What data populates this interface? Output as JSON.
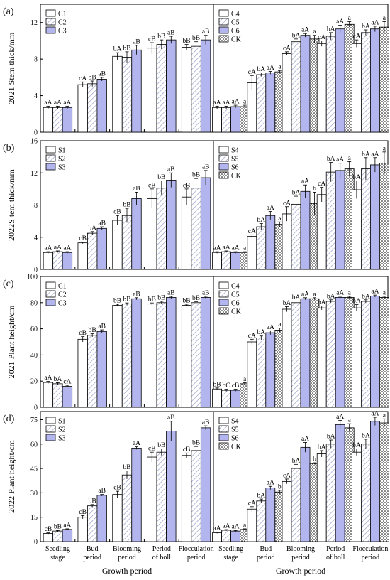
{
  "colors": {
    "white": "#ffffff",
    "hatch": "#9aa0c8",
    "blue": "#b3b6ee",
    "dots": "#000000",
    "frame": "#000000"
  },
  "x_title": "Growth period",
  "stage_labels": [
    [
      "Seedling",
      "stage"
    ],
    [
      "Bud",
      "period"
    ],
    [
      "Blooming",
      "period"
    ],
    [
      "Period",
      "of boll"
    ],
    [
      "Flocculation",
      "period"
    ]
  ],
  "chart_data": [
    {
      "type": "bar",
      "panel": "(a)",
      "ylabel": "2021 Stem thick/mm",
      "ylim": [
        0,
        14
      ],
      "yticks": [
        0,
        4,
        8,
        12
      ],
      "categories": [
        "Seedling stage",
        "Bud period",
        "Blooming period",
        "Period of boll",
        "Flocculation period"
      ],
      "left": {
        "series": [
          {
            "name": "C1",
            "pattern": "white",
            "values": [
              2.7,
              5.2,
              8.3,
              9.2,
              9.3
            ],
            "errors": [
              0.15,
              0.3,
              0.4,
              0.6,
              0.3
            ]
          },
          {
            "name": "C2",
            "pattern": "hatch",
            "values": [
              2.7,
              5.3,
              8.2,
              9.6,
              9.4
            ],
            "errors": [
              0.15,
              0.3,
              0.6,
              0.5,
              0.5
            ]
          },
          {
            "name": "C3",
            "pattern": "blue",
            "values": [
              2.7,
              5.8,
              9.0,
              10.1,
              10.1
            ],
            "errors": [
              0.15,
              0.2,
              0.5,
              0.4,
              0.5
            ]
          }
        ],
        "labels": [
          [
            "aA",
            "aA",
            "aA"
          ],
          [
            "cA",
            "bB",
            "aB"
          ],
          [
            "bA",
            "bB",
            "aB"
          ],
          [
            "cB",
            "bB",
            "aB"
          ],
          [
            "bB",
            "bB",
            "aB"
          ]
        ]
      },
      "right": {
        "series": [
          {
            "name": "C4",
            "pattern": "white",
            "values": [
              2.7,
              5.4,
              8.6,
              9.7,
              9.7
            ],
            "errors": [
              0.15,
              0.8,
              0.2,
              0.3,
              0.4
            ]
          },
          {
            "name": "C5",
            "pattern": "hatch",
            "values": [
              2.7,
              6.3,
              9.9,
              10.5,
              10.9
            ],
            "errors": [
              0.15,
              0.2,
              0.3,
              0.4,
              0.3
            ]
          },
          {
            "name": "C6",
            "pattern": "blue",
            "values": [
              2.8,
              6.5,
              10.6,
              11.3,
              11.3
            ],
            "errors": [
              0.15,
              0.15,
              0.2,
              0.4,
              0.3
            ]
          },
          {
            "name": "CK",
            "pattern": "dots",
            "values": [
              2.8,
              6.6,
              10.2,
              11.8,
              11.5
            ],
            "errors": [
              0.15,
              0.15,
              0.4,
              0.3,
              0.6
            ]
          }
        ],
        "labels": [
          [
            "aA",
            "aA",
            "aA",
            "a"
          ],
          [
            "cA",
            "bA",
            "aA",
            "a"
          ],
          [
            "cA",
            "bA",
            "aA",
            "a"
          ],
          [
            "cA",
            "bA",
            "aA",
            "a"
          ],
          [
            "cA",
            "bA",
            "aA",
            "a"
          ]
        ]
      }
    },
    {
      "type": "bar",
      "panel": "(b)",
      "ylabel": "2022S tem thick/mm",
      "ylim": [
        0,
        16
      ],
      "yticks": [
        0,
        4,
        8,
        12,
        16
      ],
      "categories": [
        "Seedling stage",
        "Bud period",
        "Blooming period",
        "Period of boll",
        "Flocculation period"
      ],
      "left": {
        "series": [
          {
            "name": "S1",
            "pattern": "white",
            "values": [
              2.1,
              3.3,
              6.1,
              8.8,
              9.0
            ],
            "errors": [
              0.1,
              0.1,
              0.6,
              1.2,
              1.0
            ]
          },
          {
            "name": "S2",
            "pattern": "hatch",
            "values": [
              2.2,
              4.5,
              6.7,
              10.1,
              10.1
            ],
            "errors": [
              0.1,
              0.2,
              0.9,
              0.9,
              1.2
            ]
          },
          {
            "name": "S3",
            "pattern": "blue",
            "values": [
              2.1,
              5.1,
              8.8,
              11.1,
              11.4
            ],
            "errors": [
              0.1,
              0.2,
              0.8,
              0.9,
              0.9
            ]
          }
        ],
        "labels": [
          [
            "aA",
            "aA",
            "aA"
          ],
          [
            "cB",
            "bA",
            "aB"
          ],
          [
            "cB",
            "bB",
            "aB"
          ],
          [
            "cB",
            "bB",
            "aB"
          ],
          [
            "cB",
            "bB",
            "aB"
          ]
        ]
      },
      "right": {
        "series": [
          {
            "name": "S4",
            "pattern": "white",
            "values": [
              2.1,
              4.1,
              6.9,
              9.3,
              9.9
            ],
            "errors": [
              0.1,
              0.2,
              0.9,
              0.9,
              1.1
            ]
          },
          {
            "name": "S5",
            "pattern": "hatch",
            "values": [
              2.2,
              5.3,
              8.1,
              12.1,
              12.5
            ],
            "errors": [
              0.1,
              0.4,
              1.0,
              1.2,
              1.4
            ]
          },
          {
            "name": "S6",
            "pattern": "blue",
            "values": [
              2.1,
              6.7,
              9.7,
              12.3,
              13.0
            ],
            "errors": [
              0.1,
              0.5,
              0.8,
              0.9,
              0.9
            ]
          },
          {
            "name": "CK",
            "pattern": "dots",
            "values": [
              2.1,
              5.6,
              8.2,
              12.5,
              13.2
            ],
            "errors": [
              0.1,
              0.3,
              1.4,
              0.9,
              1.4
            ]
          }
        ],
        "labels": [
          [
            "aA",
            "aA",
            "aA",
            "a"
          ],
          [
            "cA",
            "bA",
            "aA",
            "a"
          ],
          [
            "cA",
            "bA",
            "aA",
            "b"
          ],
          [
            "cA",
            "bA",
            "aA",
            "a"
          ],
          [
            "bA",
            "bA",
            "aA",
            "a"
          ]
        ]
      }
    },
    {
      "type": "bar",
      "panel": "(c)",
      "ylabel": "2021 Plant height/cm",
      "ylim": [
        0,
        100
      ],
      "yticks": [
        0,
        20,
        40,
        60,
        80,
        100
      ],
      "categories": [
        "Seedling stage",
        "Bud period",
        "Blooming period",
        "Period of boll",
        "Flocculation period"
      ],
      "left": {
        "series": [
          {
            "name": "C1",
            "pattern": "white",
            "values": [
              19,
              52,
              78,
              79,
              78
            ],
            "errors": [
              0.8,
              2.0,
              0.8,
              0.8,
              0.8
            ]
          },
          {
            "name": "C2",
            "pattern": "hatch",
            "values": [
              18,
              55,
              79,
              80,
              80
            ],
            "errors": [
              0.8,
              1.2,
              0.8,
              1.0,
              0.8
            ]
          },
          {
            "name": "C3",
            "pattern": "blue",
            "values": [
              16,
              58,
              83,
              84,
              84
            ],
            "errors": [
              0.8,
              1.2,
              0.8,
              0.8,
              0.8
            ]
          }
        ],
        "labels": [
          [
            "aA",
            "bA",
            "cA"
          ],
          [
            "cB",
            "bB",
            "aB"
          ],
          [
            "bB",
            "bB",
            "aB"
          ],
          [
            "bB",
            "bB",
            "aB"
          ],
          [
            "bB",
            "bB",
            "aB"
          ]
        ]
      },
      "right": {
        "series": [
          {
            "name": "C4",
            "pattern": "white",
            "values": [
              14,
              50,
              75,
              76,
              76
            ],
            "errors": [
              0.8,
              2.0,
              2.0,
              1.5,
              2.5
            ]
          },
          {
            "name": "C5",
            "pattern": "hatch",
            "values": [
              13,
              53,
              80,
              81,
              81
            ],
            "errors": [
              0.8,
              1.5,
              1.2,
              1.2,
              1.2
            ]
          },
          {
            "name": "C6",
            "pattern": "blue",
            "values": [
              13,
              57,
              83,
              84,
              85
            ],
            "errors": [
              0.8,
              1.5,
              0.8,
              0.8,
              0.8
            ]
          },
          {
            "name": "CK",
            "pattern": "dots",
            "values": [
              18,
              59,
              83,
              84,
              84
            ],
            "errors": [
              0.8,
              1.5,
              0.8,
              0.8,
              0.8
            ]
          }
        ],
        "labels": [
          [
            "bB",
            "bC",
            "cB",
            "a"
          ],
          [
            "cA",
            "bA",
            "aA",
            "a"
          ],
          [
            "bA",
            "bA",
            "aA",
            "a"
          ],
          [
            "bA",
            "bA",
            "aA",
            "a"
          ],
          [
            "bA",
            "bA",
            "aA",
            "a"
          ]
        ]
      }
    },
    {
      "type": "bar",
      "panel": "(d)",
      "ylabel": "2022 Plant height/cm",
      "ylim": [
        0,
        80
      ],
      "yticks": [
        0,
        15,
        30,
        45,
        60,
        75
      ],
      "categories": [
        "Seedling stage",
        "Bud period",
        "Blooming period",
        "Period of boll",
        "Flocculation period"
      ],
      "left": {
        "series": [
          {
            "name": "S1",
            "pattern": "white",
            "values": [
              5,
              15,
              29,
              52,
              53
            ],
            "errors": [
              0.4,
              1.0,
              2.0,
              3.0,
              1.5
            ]
          },
          {
            "name": "S2",
            "pattern": "hatch",
            "values": [
              6.5,
              22,
              41,
              55,
              56
            ],
            "errors": [
              0.4,
              0.8,
              2.5,
              2.0,
              2.5
            ]
          },
          {
            "name": "S3",
            "pattern": "blue",
            "values": [
              7.5,
              28.5,
              57.5,
              68,
              70
            ],
            "errors": [
              0.4,
              0.5,
              0.8,
              6.0,
              1.2
            ]
          }
        ],
        "labels": [
          [
            "cB",
            "bB",
            "aA"
          ],
          [
            "cB",
            "bB",
            "aB"
          ],
          [
            "cB",
            "bB",
            "aA"
          ],
          [
            "cB",
            "bB",
            "aB"
          ],
          [
            "cB",
            "bB",
            "aB"
          ]
        ]
      },
      "right": {
        "series": [
          {
            "name": "S4",
            "pattern": "white",
            "values": [
              5.5,
              20,
              37,
              54,
              55
            ],
            "errors": [
              0.4,
              1.5,
              1.5,
              2.0,
              2.0
            ]
          },
          {
            "name": "S5",
            "pattern": "hatch",
            "values": [
              7,
              25,
              45,
              60,
              60
            ],
            "errors": [
              0.4,
              1.2,
              2.5,
              2.5,
              3.0
            ]
          },
          {
            "name": "S6",
            "pattern": "blue",
            "values": [
              6.5,
              33,
              58,
              72,
              74
            ],
            "errors": [
              0.4,
              1.0,
              3.0,
              2.5,
              2.5
            ]
          },
          {
            "name": "CK",
            "pattern": "dots",
            "values": [
              7.5,
              30.5,
              48,
              70,
              73
            ],
            "errors": [
              0.4,
              1.0,
              0.5,
              2.5,
              2.5
            ]
          }
        ],
        "labels": [
          [
            "aA",
            "aA",
            "aA",
            "a"
          ],
          [
            "cA",
            "bA",
            "aA",
            "b"
          ],
          [
            "cA",
            "bA",
            "aA",
            "b"
          ],
          [
            "bA",
            "bA",
            "aA",
            "a"
          ],
          [
            "bA",
            "bA",
            "aA",
            "a"
          ]
        ]
      }
    }
  ]
}
